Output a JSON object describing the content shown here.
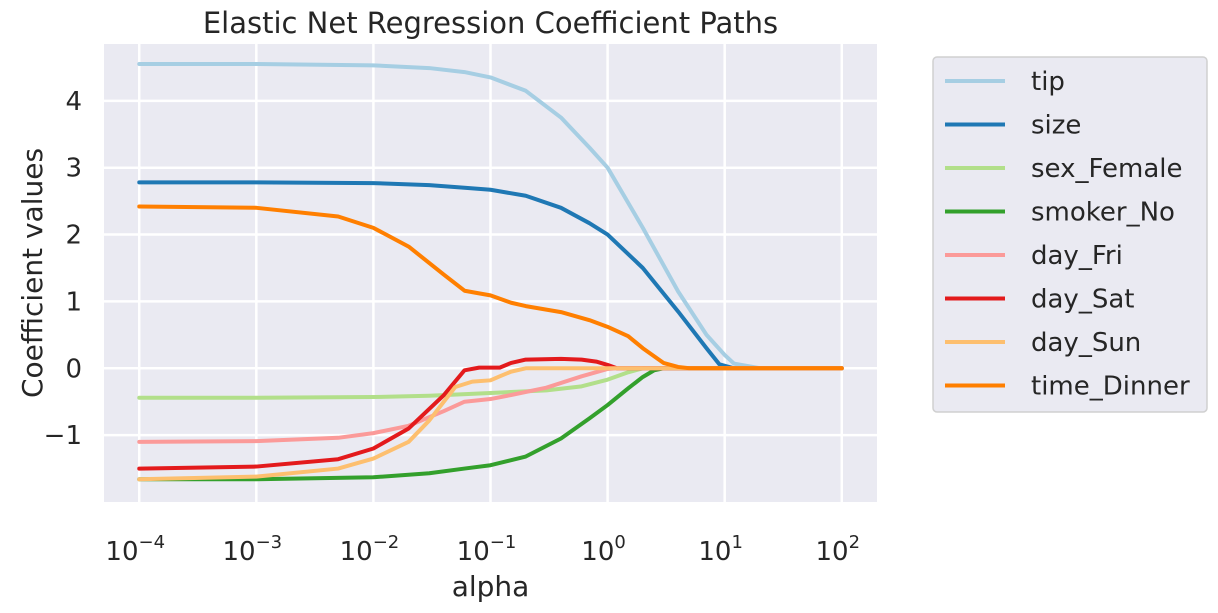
{
  "chart_data": {
    "type": "line",
    "title": "Elastic Net Regression Coefficient Paths",
    "xlabel": "alpha",
    "ylabel": "Coefficient values",
    "xscale": "log",
    "xlim": [
      5e-05,
      200
    ],
    "ylim": [
      -2.0,
      4.85
    ],
    "xticks": [
      {
        "value": 0.0001,
        "base": "10",
        "exp": "−4"
      },
      {
        "value": 0.001,
        "base": "10",
        "exp": "−3"
      },
      {
        "value": 0.01,
        "base": "10",
        "exp": "−2"
      },
      {
        "value": 0.1,
        "base": "10",
        "exp": "−1"
      },
      {
        "value": 1,
        "base": "10",
        "exp": "0"
      },
      {
        "value": 10,
        "base": "10",
        "exp": "1"
      },
      {
        "value": 100,
        "base": "10",
        "exp": "2"
      }
    ],
    "yticks": [
      {
        "value": -1,
        "label": "−1"
      },
      {
        "value": 0,
        "label": "0"
      },
      {
        "value": 1,
        "label": "1"
      },
      {
        "value": 2,
        "label": "2"
      },
      {
        "value": 3,
        "label": "3"
      },
      {
        "value": 4,
        "label": "4"
      }
    ],
    "grid": true,
    "legend": "outside-right",
    "series": [
      {
        "name": "tip",
        "color": "#a6cee3",
        "x": [
          0.0001,
          0.001,
          0.01,
          0.03,
          0.06,
          0.1,
          0.2,
          0.4,
          0.7,
          1,
          2,
          4,
          7,
          10,
          12,
          20,
          100
        ],
        "y": [
          4.55,
          4.55,
          4.53,
          4.49,
          4.43,
          4.35,
          4.15,
          3.75,
          3.3,
          3.0,
          2.1,
          1.15,
          0.5,
          0.2,
          0.07,
          0,
          0
        ]
      },
      {
        "name": "size",
        "color": "#1f78b4",
        "x": [
          0.0001,
          0.001,
          0.01,
          0.03,
          0.06,
          0.1,
          0.2,
          0.4,
          0.7,
          1,
          2,
          4,
          7,
          9,
          12,
          100
        ],
        "y": [
          2.78,
          2.78,
          2.77,
          2.74,
          2.7,
          2.67,
          2.58,
          2.4,
          2.17,
          2.0,
          1.5,
          0.85,
          0.3,
          0.06,
          0,
          0
        ]
      },
      {
        "name": "sex_Female",
        "color": "#b2df8a",
        "x": [
          0.0001,
          0.001,
          0.01,
          0.03,
          0.1,
          0.3,
          0.6,
          1,
          1.5,
          2,
          3,
          100
        ],
        "y": [
          -0.44,
          -0.44,
          -0.43,
          -0.41,
          -0.37,
          -0.33,
          -0.27,
          -0.17,
          -0.06,
          0,
          0,
          0
        ]
      },
      {
        "name": "smoker_No",
        "color": "#33a02c",
        "x": [
          0.0001,
          0.001,
          0.01,
          0.03,
          0.06,
          0.1,
          0.2,
          0.4,
          0.7,
          1,
          1.5,
          2,
          2.5,
          3,
          100
        ],
        "y": [
          -1.66,
          -1.66,
          -1.63,
          -1.57,
          -1.5,
          -1.45,
          -1.32,
          -1.05,
          -0.75,
          -0.55,
          -0.3,
          -0.13,
          -0.03,
          0,
          0
        ]
      },
      {
        "name": "day_Fri",
        "color": "#fb9a99",
        "x": [
          0.0001,
          0.001,
          0.005,
          0.01,
          0.02,
          0.04,
          0.06,
          0.1,
          0.15,
          0.3,
          0.6,
          1,
          1.2,
          100
        ],
        "y": [
          -1.1,
          -1.09,
          -1.04,
          -0.97,
          -0.86,
          -0.64,
          -0.5,
          -0.46,
          -0.4,
          -0.29,
          -0.12,
          -0.01,
          0,
          0
        ]
      },
      {
        "name": "day_Sat",
        "color": "#e31a1c",
        "x": [
          0.0001,
          0.001,
          0.005,
          0.01,
          0.02,
          0.04,
          0.06,
          0.08,
          0.12,
          0.15,
          0.2,
          0.4,
          0.6,
          0.8,
          1,
          1.2,
          100
        ],
        "y": [
          -1.5,
          -1.47,
          -1.36,
          -1.2,
          -0.9,
          -0.4,
          -0.03,
          0.01,
          0.01,
          0.08,
          0.13,
          0.14,
          0.13,
          0.1,
          0.05,
          0,
          0
        ]
      },
      {
        "name": "day_Sun",
        "color": "#fdbf6f",
        "x": [
          0.0001,
          0.001,
          0.005,
          0.01,
          0.02,
          0.03,
          0.05,
          0.07,
          0.1,
          0.12,
          0.15,
          0.2,
          0.5,
          100
        ],
        "y": [
          -1.66,
          -1.62,
          -1.5,
          -1.35,
          -1.1,
          -0.78,
          -0.28,
          -0.2,
          -0.18,
          -0.12,
          -0.05,
          0,
          0,
          0
        ]
      },
      {
        "name": "time_Dinner",
        "color": "#ff7f00",
        "x": [
          0.0001,
          0.001,
          0.005,
          0.01,
          0.02,
          0.04,
          0.06,
          0.08,
          0.1,
          0.15,
          0.2,
          0.4,
          0.7,
          1,
          1.5,
          2,
          3,
          4,
          5,
          100
        ],
        "y": [
          2.42,
          2.4,
          2.27,
          2.1,
          1.82,
          1.4,
          1.16,
          1.12,
          1.09,
          0.98,
          0.93,
          0.84,
          0.72,
          0.62,
          0.48,
          0.3,
          0.08,
          0.02,
          0,
          0
        ]
      }
    ]
  }
}
